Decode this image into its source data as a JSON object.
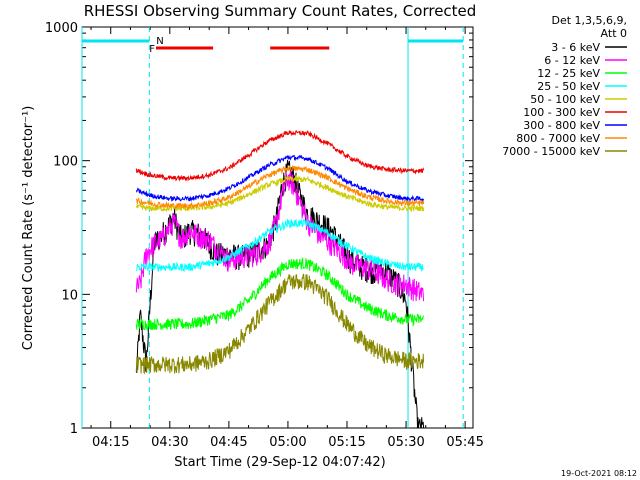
{
  "chart_data": {
    "type": "line",
    "title": "RHESSI Observing Summary Count Rates, Corrected",
    "xlabel": "Start Time (29-Sep-12 04:07:42)",
    "ylabel": "Corrected Count Rate (s⁻¹ detector⁻¹)",
    "yscale": "log",
    "ylim": [
      1,
      1000
    ],
    "xlim_minutes_after_0400": [
      7.7,
      107
    ],
    "x_ticks": [
      "04:15",
      "04:30",
      "04:45",
      "05:00",
      "05:15",
      "05:30",
      "05:45"
    ],
    "x_tick_minutes": [
      15,
      30,
      45,
      60,
      75,
      90,
      105
    ],
    "y_ticks": [
      "1",
      "10",
      "100",
      "1000"
    ],
    "y_tick_values": [
      1,
      10,
      100,
      1000
    ],
    "grid": false,
    "legend_position": "outside-right",
    "legend_header": [
      "Det 1,3,5,6,9,",
      "Att 0"
    ],
    "data_start_minute": 21.5,
    "data_end_minute": 94.5,
    "series": [
      {
        "name": "3 - 6 keV",
        "color": "#000000",
        "x": [
          21.5,
          22.5,
          24,
          26,
          28,
          31,
          33,
          35,
          38,
          40,
          42,
          45,
          48,
          52,
          55,
          57,
          58.5,
          60,
          61.5,
          63,
          65,
          68,
          71,
          74,
          76,
          79,
          82,
          85,
          88,
          90,
          91.5,
          93,
          94.5
        ],
        "y": [
          2.5,
          7,
          3,
          24,
          28,
          38,
          26,
          30,
          28,
          24,
          20,
          20,
          19,
          21,
          24,
          36,
          65,
          85,
          75,
          55,
          40,
          35,
          30,
          22,
          18,
          16,
          15,
          15,
          12,
          9,
          3,
          1,
          1
        ]
      },
      {
        "name": "6 - 12 keV",
        "color": "#ff00ff",
        "x": [
          21.5,
          22.5,
          24,
          26,
          28,
          31,
          33,
          35,
          38,
          40,
          42,
          45,
          48,
          52,
          55,
          57,
          58.5,
          60,
          61.5,
          63,
          65,
          68,
          71,
          74,
          76,
          79,
          82,
          85,
          88,
          90,
          92,
          94.5
        ],
        "y": [
          11,
          12,
          20,
          24,
          26,
          35,
          26,
          30,
          27,
          26,
          22,
          18,
          19,
          20,
          24,
          34,
          55,
          75,
          65,
          50,
          35,
          28,
          24,
          20,
          17,
          16,
          15,
          13,
          12,
          12,
          11,
          10
        ]
      },
      {
        "name": "12 - 25 keV",
        "color": "#00ff00",
        "x": [
          21.5,
          25,
          30,
          35,
          40,
          45,
          50,
          55,
          60,
          65,
          70,
          75,
          80,
          85,
          90,
          94.5
        ],
        "y": [
          6,
          6,
          6,
          6,
          6.5,
          7,
          9,
          13,
          17,
          17,
          14,
          10,
          8,
          7,
          6.5,
          6.5
        ]
      },
      {
        "name": "25 - 50 keV",
        "color": "#00ffff",
        "x": [
          21.5,
          25,
          30,
          35,
          40,
          45,
          50,
          55,
          60,
          65,
          70,
          75,
          80,
          85,
          90,
          94.5
        ],
        "y": [
          16,
          16,
          16,
          16,
          17,
          19,
          23,
          29,
          34,
          34,
          29,
          23,
          19,
          17,
          16,
          16
        ]
      },
      {
        "name": "50 - 100 keV",
        "color": "#cccc00",
        "x": [
          21.5,
          25,
          30,
          35,
          40,
          45,
          50,
          55,
          60,
          65,
          70,
          75,
          80,
          85,
          90,
          94.5
        ],
        "y": [
          45,
          44,
          44,
          44,
          45,
          48,
          56,
          66,
          73,
          72,
          63,
          54,
          48,
          45,
          44,
          44
        ]
      },
      {
        "name": "100 - 300 keV",
        "color": "#ee0000",
        "x": [
          21.5,
          25,
          30,
          35,
          40,
          45,
          50,
          55,
          60,
          65,
          70,
          75,
          80,
          85,
          90,
          94.5
        ],
        "y": [
          85,
          78,
          74,
          74,
          78,
          88,
          110,
          140,
          162,
          160,
          135,
          108,
          92,
          86,
          84,
          84
        ]
      },
      {
        "name": "300 - 800 keV",
        "color": "#0000ff",
        "x": [
          21.5,
          25,
          30,
          35,
          40,
          45,
          50,
          55,
          60,
          65,
          70,
          75,
          80,
          85,
          90,
          94.5
        ],
        "y": [
          60,
          55,
          52,
          52,
          55,
          62,
          75,
          92,
          106,
          104,
          88,
          70,
          60,
          55,
          52,
          52
        ]
      },
      {
        "name": "800 - 7000 keV",
        "color": "#ff8800",
        "x": [
          21.5,
          25,
          30,
          35,
          40,
          45,
          50,
          55,
          60,
          65,
          70,
          75,
          80,
          85,
          90,
          94.5
        ],
        "y": [
          50,
          48,
          46,
          46,
          48,
          53,
          64,
          78,
          88,
          86,
          75,
          62,
          54,
          50,
          48,
          48
        ]
      },
      {
        "name": "7000 - 15000 keV",
        "color": "#888800",
        "x": [
          21.5,
          25,
          30,
          35,
          40,
          45,
          50,
          55,
          60,
          65,
          70,
          75,
          80,
          85,
          90,
          94.5
        ],
        "y": [
          3,
          3,
          3,
          3,
          3.2,
          3.8,
          5.5,
          8.5,
          12.5,
          12.5,
          9.5,
          6,
          4.2,
          3.5,
          3.2,
          3.2
        ]
      }
    ],
    "flags": [
      {
        "label": "F",
        "color": "#ee0000",
        "label_at_minute": 25.5,
        "segments": [
          [
            26.5,
            41.0
          ],
          [
            55.5,
            70.5
          ]
        ]
      },
      {
        "label": "N",
        "color": "#00e5ee",
        "label_at_minute": 27.5,
        "segments": [
          [
            7.7,
            24.8
          ],
          [
            90.5,
            104.5
          ]
        ]
      }
    ],
    "dashed_lines_minutes": [
      24.8,
      104.5
    ],
    "solid_lines_minutes": [
      7.7,
      90.5
    ]
  },
  "footer": {
    "timestamp": "19-Oct-2021 08:12"
  }
}
